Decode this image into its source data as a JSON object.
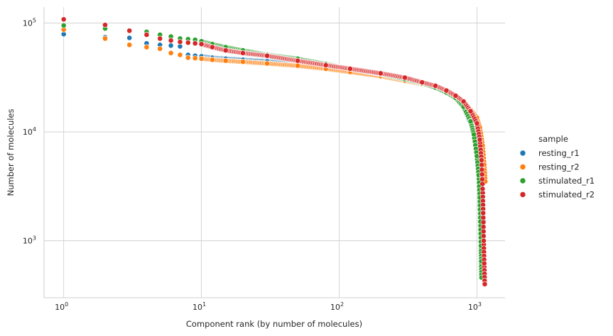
{
  "chart_data": {
    "type": "scatter",
    "title": "",
    "xlabel": "Component rank (by number of molecules)",
    "ylabel": "Number of molecules",
    "x_scale": "log",
    "y_scale": "log",
    "xlim": [
      0.72,
      1600
    ],
    "ylim": [
      300,
      140000
    ],
    "x_ticks": [
      {
        "value": 1,
        "label": "10",
        "exp": "0"
      },
      {
        "value": 10,
        "label": "10",
        "exp": "1"
      },
      {
        "value": 100,
        "label": "10",
        "exp": "2"
      },
      {
        "value": 1000,
        "label": "10",
        "exp": "3"
      }
    ],
    "y_ticks": [
      {
        "value": 1000,
        "label": "10",
        "exp": "3"
      },
      {
        "value": 10000,
        "label": "10",
        "exp": "4"
      },
      {
        "value": 100000,
        "label": "10",
        "exp": "5"
      }
    ],
    "grid": true,
    "legend": {
      "title": "sample",
      "placement": "right"
    },
    "series": [
      {
        "name": "resting_r1",
        "color": "#1f77b4",
        "points": [
          [
            1,
            79000
          ],
          [
            2,
            74000
          ],
          [
            3,
            73000
          ],
          [
            4,
            65000
          ],
          [
            5,
            63000
          ],
          [
            6,
            62000
          ],
          [
            7,
            61000
          ],
          [
            8,
            51000
          ],
          [
            9,
            50000
          ],
          [
            10,
            49500
          ],
          [
            12,
            48000
          ],
          [
            15,
            47000
          ],
          [
            20,
            46000
          ],
          [
            30,
            44500
          ],
          [
            50,
            41500
          ],
          [
            80,
            38500
          ],
          [
            120,
            36000
          ],
          [
            200,
            33000
          ],
          [
            300,
            30000
          ],
          [
            400,
            28000
          ],
          [
            500,
            26000
          ],
          [
            600,
            23500
          ],
          [
            700,
            21000
          ],
          [
            800,
            17000
          ],
          [
            900,
            12000
          ],
          [
            1000,
            8000
          ],
          [
            1050,
            5000
          ],
          [
            1100,
            2500
          ],
          [
            1120,
            1500
          ]
        ]
      },
      {
        "name": "resting_r2",
        "color": "#ff7f0e",
        "points": [
          [
            1,
            87000
          ],
          [
            2,
            72000
          ],
          [
            3,
            63000
          ],
          [
            4,
            60000
          ],
          [
            5,
            58000
          ],
          [
            6,
            53000
          ],
          [
            7,
            51000
          ],
          [
            8,
            48000
          ],
          [
            9,
            47500
          ],
          [
            10,
            47000
          ],
          [
            12,
            46000
          ],
          [
            15,
            45000
          ],
          [
            20,
            44000
          ],
          [
            30,
            42500
          ],
          [
            50,
            40500
          ],
          [
            80,
            38000
          ],
          [
            120,
            35500
          ],
          [
            200,
            32500
          ],
          [
            300,
            29500
          ],
          [
            400,
            27500
          ],
          [
            500,
            26000
          ],
          [
            600,
            23500
          ],
          [
            700,
            21500
          ],
          [
            800,
            19000
          ],
          [
            900,
            16000
          ],
          [
            1000,
            13500
          ],
          [
            1050,
            11000
          ],
          [
            1100,
            7500
          ],
          [
            1130,
            5000
          ],
          [
            1150,
            3500
          ]
        ]
      },
      {
        "name": "stimulated_r1",
        "color": "#2ca02c",
        "points": [
          [
            1,
            95000
          ],
          [
            2,
            89000
          ],
          [
            3,
            84000
          ],
          [
            4,
            83000
          ],
          [
            5,
            78000
          ],
          [
            6,
            75000
          ],
          [
            7,
            72000
          ],
          [
            8,
            71000
          ],
          [
            9,
            70000
          ],
          [
            10,
            68000
          ],
          [
            12,
            64000
          ],
          [
            15,
            60000
          ],
          [
            20,
            56000
          ],
          [
            30,
            51000
          ],
          [
            50,
            47000
          ],
          [
            80,
            42000
          ],
          [
            120,
            38000
          ],
          [
            200,
            34000
          ],
          [
            300,
            30500
          ],
          [
            400,
            28000
          ],
          [
            500,
            25500
          ],
          [
            600,
            23000
          ],
          [
            700,
            20500
          ],
          [
            800,
            17000
          ],
          [
            900,
            12500
          ],
          [
            950,
            9500
          ],
          [
            1000,
            6000
          ],
          [
            1030,
            4000
          ],
          [
            1050,
            2500
          ],
          [
            1060,
            1500
          ],
          [
            1070,
            900
          ],
          [
            1075,
            650
          ],
          [
            1080,
            460
          ]
        ]
      },
      {
        "name": "stimulated_r2",
        "color": "#d62728",
        "points": [
          [
            1,
            108000
          ],
          [
            2,
            96000
          ],
          [
            3,
            85000
          ],
          [
            4,
            78000
          ],
          [
            5,
            72000
          ],
          [
            6,
            69000
          ],
          [
            7,
            67000
          ],
          [
            8,
            66000
          ],
          [
            9,
            65000
          ],
          [
            10,
            64000
          ],
          [
            12,
            60000
          ],
          [
            15,
            56000
          ],
          [
            20,
            53000
          ],
          [
            30,
            50000
          ],
          [
            50,
            45000
          ],
          [
            80,
            41000
          ],
          [
            120,
            38000
          ],
          [
            200,
            34500
          ],
          [
            300,
            31500
          ],
          [
            400,
            28500
          ],
          [
            500,
            26500
          ],
          [
            600,
            24000
          ],
          [
            700,
            21500
          ],
          [
            800,
            19000
          ],
          [
            900,
            15500
          ],
          [
            1000,
            12000
          ],
          [
            1050,
            8500
          ],
          [
            1080,
            5500
          ],
          [
            1100,
            3000
          ],
          [
            1110,
            1800
          ],
          [
            1120,
            1000
          ],
          [
            1130,
            620
          ],
          [
            1140,
            400
          ]
        ]
      }
    ]
  }
}
